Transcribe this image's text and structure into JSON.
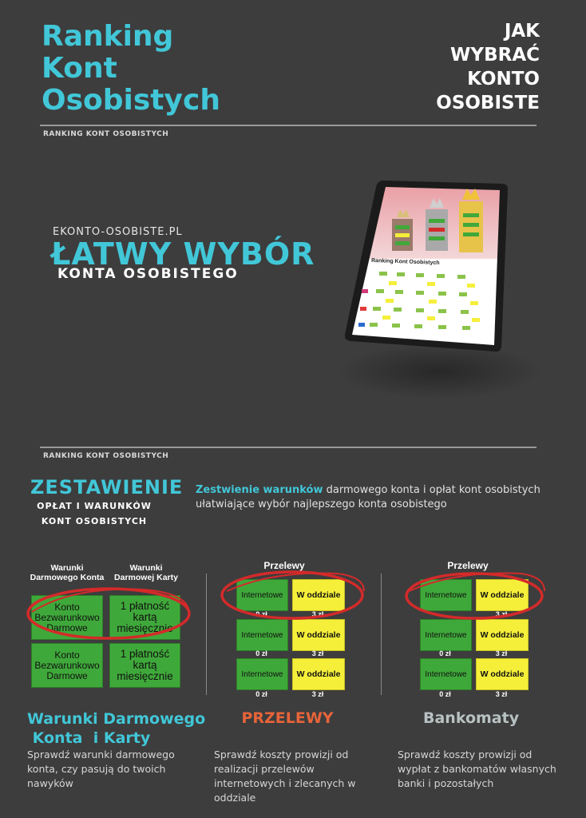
{
  "header": {
    "title_lines": [
      "Ranking",
      "Kont",
      "Osobistych"
    ],
    "right_lines": [
      "JAK",
      "WYBRAĆ",
      "KONTO",
      "OSOBISTE"
    ],
    "label": "RANKING KONT OSOBISTYCH"
  },
  "hero": {
    "url": "EKONTO-OSOBISTE.PL",
    "headline": "ŁATWY WYBÓR",
    "subline": "KONTA OSOBISTEGO",
    "tablet_title": "Ranking Kont Osobistych"
  },
  "section": {
    "label": "RANKING KONT OSOBISTYCH",
    "title": "ZESTAWIENIE",
    "subtitle_lines": [
      "OPŁAT I WARUNKÓW",
      "KONT OSOBISTYCH"
    ],
    "desc_highlight": "Zestwienie warunków",
    "desc_rest": " darmowego konta   i opłat  kont osobistych ułatwiające wybór najlepszego konta osobistego"
  },
  "col1": {
    "head_left": "Warunki Darmowego Konta",
    "head_right": "Warunki Darmowej Karty",
    "rows": [
      {
        "left": "Konto Bezwarunkowo Darmowe",
        "right": "1 płatność kartą miesięcznie"
      },
      {
        "left": "Konto Bezwarunkowo Darmowe",
        "right": "1 płatność kartą miesięcznie"
      }
    ],
    "title_lines": [
      "Warunki Darmowego",
      " Konta  i Karty"
    ],
    "text": "Sprawdź warunki darmowego konta, czy pasują do twoich nawyków"
  },
  "col2": {
    "head": "Przelewy",
    "rows": [
      {
        "left": "Internetowe",
        "right": "W oddziale",
        "left_price": "0 zł",
        "right_price": "3 zł"
      },
      {
        "left": "Internetowe",
        "right": "W oddziale",
        "left_price": "0 zł",
        "right_price": "3 zł"
      },
      {
        "left": "Internetowe",
        "right": "W oddziale",
        "left_price": "0 zł",
        "right_price": "3 zł"
      }
    ],
    "title": "PRZELEWY",
    "text": "Sprawdź koszty prowizji od realizacji przelewów internetowych i zlecanych w oddziale"
  },
  "col3": {
    "head": "Przelewy",
    "rows": [
      {
        "left": "Internetowe",
        "right": "W oddziale",
        "left_price": "0 zł",
        "right_price": "3 zł"
      },
      {
        "left": "Internetowe",
        "right": "W oddziale",
        "left_price": "0 zł",
        "right_price": "3 zł"
      },
      {
        "left": "Internetowe",
        "right": "W oddziale",
        "left_price": "0 zł",
        "right_price": "3 zł"
      }
    ],
    "title": "Bankomaty",
    "text": "Sprawdź koszty prowizji od wypłat z bankomatów własnych banki  i pozostałych"
  },
  "colors": {
    "background": "#3d3d3d",
    "accent_cyan": "#41c7d8",
    "accent_orange": "#e8643a",
    "bankomaty_grey": "#b8c2c2",
    "box_green": "#3fa83a",
    "box_yellow": "#f5ef3a",
    "circle_red": "#d42a2a"
  }
}
